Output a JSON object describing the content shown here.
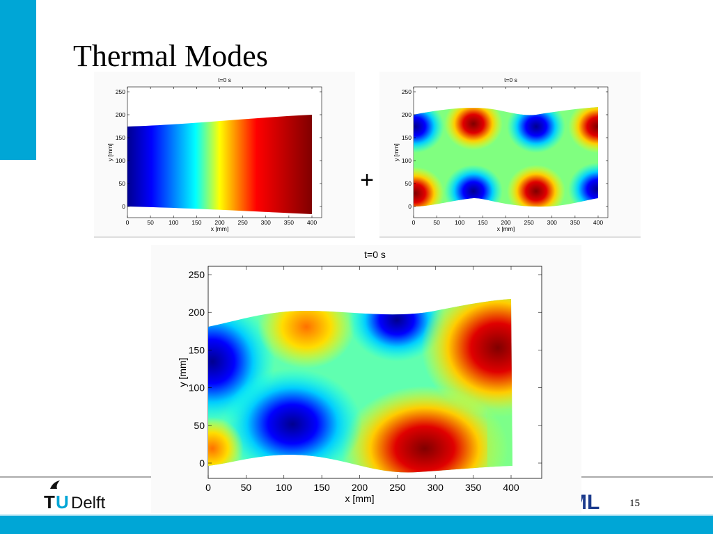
{
  "title": "Thermal Modes",
  "plus": "+",
  "page_number": "15",
  "footer": {
    "logo_t": "T",
    "logo_u": "U",
    "logo_text": "Delft",
    "partner_logo": "ML"
  },
  "plots": [
    {
      "title": "t=0 s",
      "xlabel": "x [mm]",
      "ylabel": "y [mm]",
      "xticks": [
        0,
        50,
        100,
        150,
        200,
        250,
        300,
        350,
        400
      ],
      "yticks": [
        0,
        50,
        100,
        150,
        200,
        250
      ]
    },
    {
      "title": "t=0 s",
      "xlabel": "x [mm]",
      "ylabel": "y [mm]",
      "xticks": [
        0,
        50,
        100,
        150,
        200,
        250,
        300,
        350,
        400
      ],
      "yticks": [
        0,
        50,
        100,
        150,
        200,
        250
      ]
    },
    {
      "title": "t=0 s",
      "xlabel": "x [mm]",
      "ylabel": "y [mm]",
      "xticks": [
        0,
        50,
        100,
        150,
        200,
        250,
        300,
        350,
        400
      ],
      "yticks": [
        0,
        50,
        100,
        150,
        200,
        250
      ]
    }
  ]
}
